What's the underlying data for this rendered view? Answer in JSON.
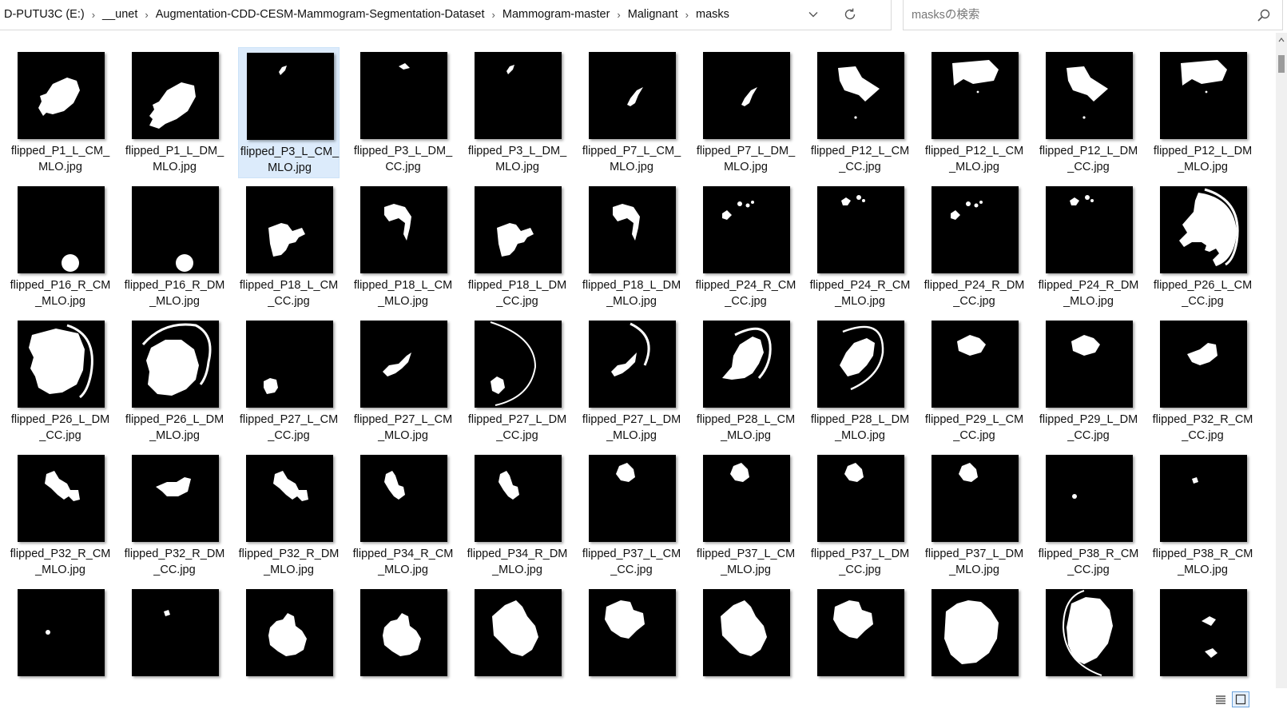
{
  "address": {
    "crumbs": [
      "D-PUTU3C (E:)",
      "__unet",
      "Augmentation-CDD-CESM-Mammogram-Segmentation-Dataset",
      "Mammogram-master",
      "Malignant",
      "masks"
    ],
    "dropdown_icon": "chevron-down-icon",
    "refresh_icon": "refresh-icon"
  },
  "search": {
    "placeholder": "masksの検索",
    "value": "",
    "icon": "search-icon"
  },
  "files": [
    {
      "name": "flipped_P1_L_CM_MLO.jpg",
      "shape": "p1a"
    },
    {
      "name": "flipped_P1_L_DM_MLO.jpg",
      "shape": "p1b"
    },
    {
      "name": "flipped_P3_L_CM_MLO.jpg",
      "shape": "p3",
      "selected": true
    },
    {
      "name": "flipped_P3_L_DM_CC.jpg",
      "shape": "p3b"
    },
    {
      "name": "flipped_P3_L_DM_MLO.jpg",
      "shape": "p3"
    },
    {
      "name": "flipped_P7_L_CM_MLO.jpg",
      "shape": "p7"
    },
    {
      "name": "flipped_P7_L_DM_MLO.jpg",
      "shape": "p7"
    },
    {
      "name": "flipped_P12_L_CM_CC.jpg",
      "shape": "p12cc"
    },
    {
      "name": "flipped_P12_L_CM_MLO.jpg",
      "shape": "p12mlo"
    },
    {
      "name": "flipped_P12_L_DM_CC.jpg",
      "shape": "p12cc"
    },
    {
      "name": "flipped_P12_L_DM_MLO.jpg",
      "shape": "p12mlo"
    },
    {
      "name": "flipped_P16_R_CM_MLO.jpg",
      "shape": "p16"
    },
    {
      "name": "flipped_P16_R_DM_MLO.jpg",
      "shape": "p16"
    },
    {
      "name": "flipped_P18_L_CM_CC.jpg",
      "shape": "p18cc"
    },
    {
      "name": "flipped_P18_L_CM_MLO.jpg",
      "shape": "p18mlo"
    },
    {
      "name": "flipped_P18_L_DM_CC.jpg",
      "shape": "p18cc"
    },
    {
      "name": "flipped_P18_L_DM_MLO.jpg",
      "shape": "p18mlo"
    },
    {
      "name": "flipped_P24_R_CM_CC.jpg",
      "shape": "p24cc"
    },
    {
      "name": "flipped_P24_R_CM_MLO.jpg",
      "shape": "p24mlo"
    },
    {
      "name": "flipped_P24_R_DM_CC.jpg",
      "shape": "p24cc"
    },
    {
      "name": "flipped_P24_R_DM_MLO.jpg",
      "shape": "p24mlo"
    },
    {
      "name": "flipped_P26_L_CM_CC.jpg",
      "shape": "p26cc"
    },
    {
      "name": "flipped_P26_L_DM_CC.jpg",
      "shape": "p26dmcc"
    },
    {
      "name": "flipped_P26_L_DM_MLO.jpg",
      "shape": "p26dmmlo"
    },
    {
      "name": "flipped_P27_L_CM_CC.jpg",
      "shape": "p27cc"
    },
    {
      "name": "flipped_P27_L_CM_MLO.jpg",
      "shape": "p27mlo"
    },
    {
      "name": "flipped_P27_L_DM_CC.jpg",
      "shape": "p27dmcc"
    },
    {
      "name": "flipped_P27_L_DM_MLO.jpg",
      "shape": "p27dmmlo"
    },
    {
      "name": "flipped_P28_L_CM_MLO.jpg",
      "shape": "p28"
    },
    {
      "name": "flipped_P28_L_DM_MLO.jpg",
      "shape": "p28b"
    },
    {
      "name": "flipped_P29_L_CM_CC.jpg",
      "shape": "p29"
    },
    {
      "name": "flipped_P29_L_DM_CC.jpg",
      "shape": "p29"
    },
    {
      "name": "flipped_P32_R_CM_CC.jpg",
      "shape": "p32cc"
    },
    {
      "name": "flipped_P32_R_CM_MLO.jpg",
      "shape": "p32mlo"
    },
    {
      "name": "flipped_P32_R_DM_CC.jpg",
      "shape": "p32dmcc"
    },
    {
      "name": "flipped_P32_R_DM_MLO.jpg",
      "shape": "p32mlo"
    },
    {
      "name": "flipped_P34_R_CM_MLO.jpg",
      "shape": "p34"
    },
    {
      "name": "flipped_P34_R_DM_MLO.jpg",
      "shape": "p34"
    },
    {
      "name": "flipped_P37_L_CM_CC.jpg",
      "shape": "p37"
    },
    {
      "name": "flipped_P37_L_CM_MLO.jpg",
      "shape": "p37"
    },
    {
      "name": "flipped_P37_L_DM_CC.jpg",
      "shape": "p37"
    },
    {
      "name": "flipped_P37_L_DM_MLO.jpg",
      "shape": "p37"
    },
    {
      "name": "flipped_P38_R_CM_CC.jpg",
      "shape": "dotsmall"
    },
    {
      "name": "flipped_P38_R_CM_MLO.jpg",
      "shape": "dotsmall2"
    },
    {
      "name": "",
      "shape": "dotsmall3"
    },
    {
      "name": "",
      "shape": "dotsmall4"
    },
    {
      "name": "",
      "shape": "big1"
    },
    {
      "name": "",
      "shape": "big1"
    },
    {
      "name": "",
      "shape": "big2"
    },
    {
      "name": "",
      "shape": "big3"
    },
    {
      "name": "",
      "shape": "big2"
    },
    {
      "name": "",
      "shape": "big3"
    },
    {
      "name": "",
      "shape": "big4"
    },
    {
      "name": "",
      "shape": "big5"
    },
    {
      "name": "",
      "shape": "twosmall"
    }
  ],
  "view": {
    "details_icon": "details-view-icon",
    "large_icons_icon": "large-icons-view-icon",
    "active": "large-icons"
  }
}
